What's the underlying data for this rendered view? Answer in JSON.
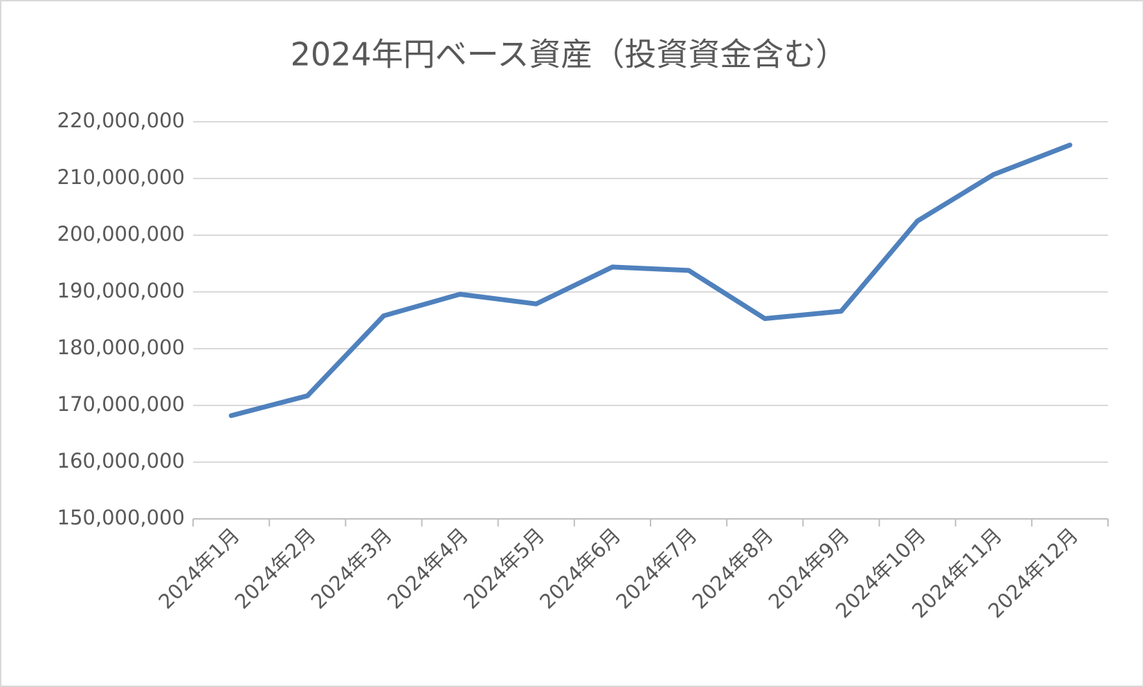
{
  "chart_data": {
    "type": "line",
    "title": "2024年円ベース資産（投資資金含む）",
    "categories": [
      "2024年1月",
      "2024年2月",
      "2024年3月",
      "2024年4月",
      "2024年5月",
      "2024年6月",
      "2024年7月",
      "2024年8月",
      "2024年9月",
      "2024年10月",
      "2024年11月",
      "2024年12月"
    ],
    "values": [
      168200000,
      171700000,
      185800000,
      189600000,
      187900000,
      194400000,
      193800000,
      185300000,
      186600000,
      202500000,
      210700000,
      215900000
    ],
    "color": "#4f81bd",
    "ylim": [
      150000000,
      220000000
    ],
    "yticks": [
      {
        "value": 150000000,
        "label": "150,000,000"
      },
      {
        "value": 160000000,
        "label": "160,000,000"
      },
      {
        "value": 170000000,
        "label": "170,000,000"
      },
      {
        "value": 180000000,
        "label": "180,000,000"
      },
      {
        "value": 190000000,
        "label": "190,000,000"
      },
      {
        "value": 200000000,
        "label": "200,000,000"
      },
      {
        "value": 210000000,
        "label": "210,000,000"
      },
      {
        "value": 220000000,
        "label": "220,000,000"
      }
    ],
    "grid": true
  }
}
